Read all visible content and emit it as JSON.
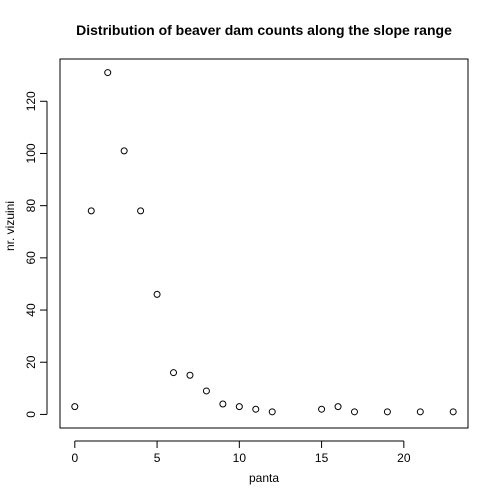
{
  "chart_data": {
    "type": "scatter",
    "title": "Distribution of beaver dam counts along the slope range",
    "xlabel": "panta",
    "ylabel": "nr. vizuini",
    "xlim": [
      -0.9,
      23.9
    ],
    "ylim": [
      -5.2,
      136.2
    ],
    "xticks": [
      0,
      5,
      10,
      15,
      20
    ],
    "yticks": [
      0,
      20,
      40,
      60,
      80,
      100,
      120
    ],
    "points": [
      {
        "x": 0,
        "y": 3
      },
      {
        "x": 1,
        "y": 78
      },
      {
        "x": 2,
        "y": 131
      },
      {
        "x": 3,
        "y": 101
      },
      {
        "x": 4,
        "y": 78
      },
      {
        "x": 5,
        "y": 46
      },
      {
        "x": 6,
        "y": 16
      },
      {
        "x": 7,
        "y": 15
      },
      {
        "x": 8,
        "y": 9
      },
      {
        "x": 9,
        "y": 4
      },
      {
        "x": 10,
        "y": 3
      },
      {
        "x": 11,
        "y": 2
      },
      {
        "x": 12,
        "y": 1
      },
      {
        "x": 15,
        "y": 2
      },
      {
        "x": 16,
        "y": 3
      },
      {
        "x": 17,
        "y": 1
      },
      {
        "x": 19,
        "y": 1
      },
      {
        "x": 21,
        "y": 1
      },
      {
        "x": 23,
        "y": 1
      }
    ],
    "marker": "open-circle",
    "marker_color": "#000000",
    "grid": false,
    "legend": "none"
  }
}
